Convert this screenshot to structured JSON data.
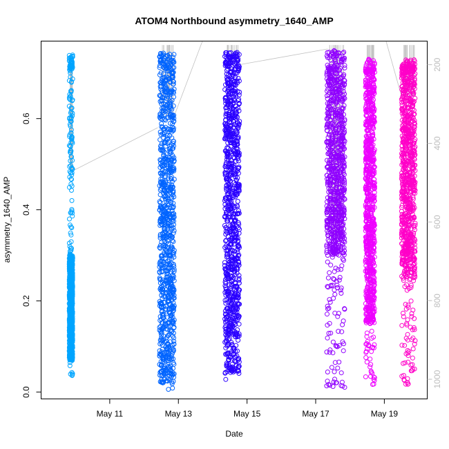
{
  "chart_data": {
    "type": "scatter",
    "title": "ATOM4 Northbound asymmetry_1640_AMP",
    "xlabel": "Date",
    "ylabel": "asymmetry_1640_AMP",
    "x_ticks": [
      "May 11",
      "May 13",
      "May 15",
      "May 17",
      "May 19"
    ],
    "x_tick_days": [
      11,
      13,
      15,
      17,
      19
    ],
    "xlim_days": [
      9.0,
      20.25
    ],
    "ylim": [
      -0.015,
      0.77
    ],
    "y_ticks": [
      0.0,
      0.2,
      0.4,
      0.6
    ],
    "y2_ticks": [
      200,
      400,
      600,
      800,
      1000
    ],
    "y2lim": [
      1050,
      140
    ],
    "colors": {
      "axis": "#000000",
      "secondary_axis": "#bdbdbd",
      "depth_line": "#c0c0c0"
    },
    "series": [
      {
        "x_start_day": 9.82,
        "x_end_day": 9.92,
        "y_min": 0.035,
        "y_max": 0.74,
        "dense_low": 0.07,
        "dense_high": 0.3,
        "color": "#00a5ff",
        "depth_top": 200,
        "depth_bottom": 470
      },
      {
        "x_start_day": 12.45,
        "x_end_day": 12.88,
        "y_min": 0.002,
        "y_max": 0.745,
        "dense_low": 0.02,
        "dense_high": 0.73,
        "color": "#0064ff",
        "depth_top": 150,
        "depth_bottom": 330
      },
      {
        "x_start_day": 14.35,
        "x_end_day": 14.78,
        "y_min": 0.02,
        "y_max": 0.745,
        "dense_low": 0.04,
        "dense_high": 0.73,
        "color": "#2a00ff",
        "depth_top": 150,
        "depth_bottom": 200
      },
      {
        "x_start_day": 17.32,
        "x_end_day": 17.85,
        "y_min": 0.01,
        "y_max": 0.75,
        "dense_low": 0.3,
        "dense_high": 0.72,
        "color": "#9000ff",
        "depth_top": 150,
        "depth_bottom": 640
      },
      {
        "x_start_day": 18.45,
        "x_end_day": 18.72,
        "y_min": 0.01,
        "y_max": 0.73,
        "dense_low": 0.15,
        "dense_high": 0.71,
        "color": "#ee00ff",
        "depth_top": 150,
        "depth_bottom": 220
      },
      {
        "x_start_day": 19.5,
        "x_end_day": 19.9,
        "y_min": 0.0,
        "y_max": 0.73,
        "dense_low": 0.25,
        "dense_high": 0.72,
        "color": "#ff00c8",
        "depth_top": 150,
        "depth_bottom": 280
      }
    ],
    "depth_connectors": [
      {
        "from_day": 9.92,
        "from_depth": 470,
        "to_day": 12.4,
        "to_depth": 360
      },
      {
        "from_day": 12.88,
        "from_depth": 330,
        "to_day": 13.7,
        "to_depth": 140
      },
      {
        "from_day": 14.78,
        "from_depth": 200,
        "to_day": 17.35,
        "to_depth": 160
      },
      {
        "from_day": 19.05,
        "from_depth": 140,
        "to_day": 19.5,
        "to_depth": 280
      }
    ]
  }
}
